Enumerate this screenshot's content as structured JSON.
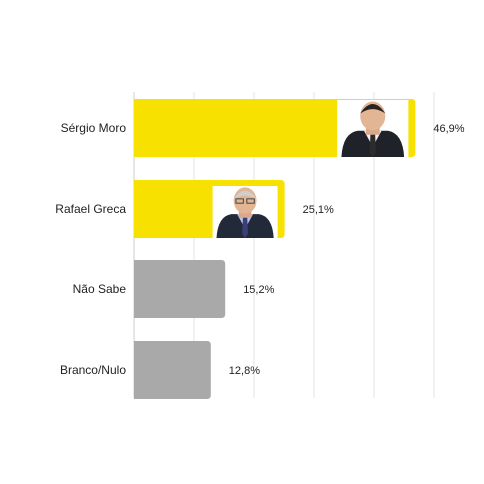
{
  "chart_data": {
    "type": "bar",
    "orientation": "horizontal",
    "categories": [
      "Sérgio Moro",
      "Rafael Greca",
      "Não Sabe",
      "Branco/Nulo"
    ],
    "values": [
      46.9,
      25.1,
      15.2,
      12.8
    ],
    "value_labels": [
      "46,9%",
      "25,1%",
      "15,2%",
      "12,8%"
    ],
    "bar_colors": [
      "#f7e100",
      "#f7e100",
      "#a9a9a9",
      "#a9a9a9"
    ],
    "bar_photos": [
      "man-in-suit-photo",
      "man-in-suit-photo",
      null,
      null
    ],
    "xlim": [
      0,
      50
    ],
    "grid": true,
    "legend": "none",
    "title": "",
    "xlabel": "",
    "ylabel": ""
  }
}
